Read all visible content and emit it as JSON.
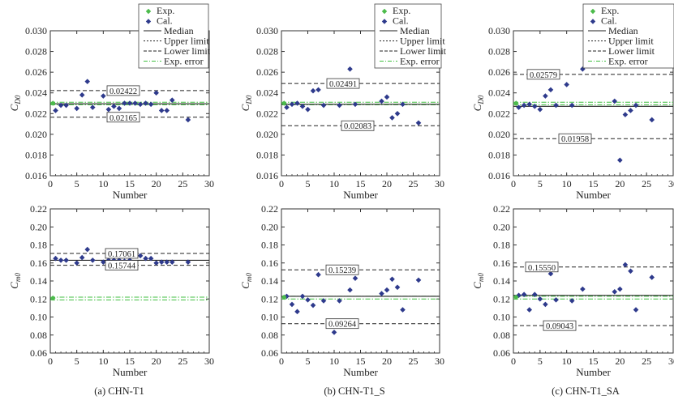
{
  "legend": {
    "exp": "Exp.",
    "cal": "Cal.",
    "median": "Median",
    "upper": "Upper limit",
    "lower": "Lower limit",
    "experr": "Exp. error"
  },
  "colors": {
    "exp": "#4cbb4c",
    "cal": "#2e3a8c",
    "median": "#222222",
    "limit": "#222222",
    "experr": "#3fbf3f"
  },
  "chart_data": [
    {
      "type": "scatter",
      "panel": "(a) CHN-T1",
      "metric": "CD0",
      "xlabel": "Number",
      "ylabel": "CD0",
      "xlim": [
        0,
        30
      ],
      "ylim": [
        0.016,
        0.03
      ],
      "xticks": [
        "0",
        "5",
        "10",
        "15",
        "20",
        "25",
        "30"
      ],
      "yticks": [
        "0.016",
        "0.018",
        "0.020",
        "0.022",
        "0.024",
        "0.026",
        "0.028",
        "0.030"
      ],
      "exp": 0.023,
      "median": 0.02295,
      "upper": 0.02422,
      "lower": 0.02165,
      "experr": [
        0.02285,
        0.0231
      ],
      "upper_label": "0.02422",
      "lower_label": "0.02165",
      "cal": [
        [
          1,
          0.0223
        ],
        [
          2,
          0.0228
        ],
        [
          3,
          0.0228
        ],
        [
          5,
          0.0225
        ],
        [
          6,
          0.0238
        ],
        [
          7,
          0.0251
        ],
        [
          8,
          0.0226
        ],
        [
          10,
          0.0237
        ],
        [
          11,
          0.0224
        ],
        [
          12,
          0.0227
        ],
        [
          13,
          0.0225
        ],
        [
          14,
          0.023
        ],
        [
          15,
          0.023
        ],
        [
          16,
          0.023
        ],
        [
          17,
          0.0229
        ],
        [
          18,
          0.023
        ],
        [
          19,
          0.0229
        ],
        [
          20,
          0.024
        ],
        [
          21,
          0.0223
        ],
        [
          22,
          0.0223
        ],
        [
          23,
          0.0233
        ],
        [
          26,
          0.0214
        ]
      ]
    },
    {
      "type": "scatter",
      "panel": "(b) CHN-T1_S",
      "metric": "CD0",
      "xlabel": "Number",
      "ylabel": "CD0",
      "xlim": [
        0,
        30
      ],
      "ylim": [
        0.016,
        0.03
      ],
      "xticks": [
        "0",
        "5",
        "10",
        "15",
        "20",
        "25",
        "30"
      ],
      "yticks": [
        "0.016",
        "0.018",
        "0.020",
        "0.022",
        "0.024",
        "0.026",
        "0.028",
        "0.030"
      ],
      "exp": 0.023,
      "median": 0.0229,
      "upper": 0.02491,
      "lower": 0.02083,
      "experr": [
        0.02285,
        0.0231
      ],
      "upper_label": "0.02491",
      "lower_label": "0.02083",
      "cal": [
        [
          1,
          0.0226
        ],
        [
          2,
          0.0229
        ],
        [
          3,
          0.023
        ],
        [
          4,
          0.0227
        ],
        [
          5,
          0.0224
        ],
        [
          6,
          0.0242
        ],
        [
          7,
          0.0243
        ],
        [
          8,
          0.0228
        ],
        [
          10,
          0.0248
        ],
        [
          11,
          0.0228
        ],
        [
          13,
          0.0263
        ],
        [
          14,
          0.0229
        ],
        [
          19,
          0.0232
        ],
        [
          20,
          0.0236
        ],
        [
          21,
          0.0216
        ],
        [
          22,
          0.022
        ],
        [
          23,
          0.0229
        ],
        [
          26,
          0.0211
        ]
      ]
    },
    {
      "type": "scatter",
      "panel": "(c) CHN-T1_SA",
      "metric": "CD0",
      "xlabel": "Number",
      "ylabel": "CD0",
      "xlim": [
        0,
        30
      ],
      "ylim": [
        0.016,
        0.03
      ],
      "xticks": [
        "0",
        "5",
        "10",
        "15",
        "20",
        "25",
        "30"
      ],
      "yticks": [
        "0.016",
        "0.018",
        "0.020",
        "0.022",
        "0.024",
        "0.026",
        "0.028",
        "0.030"
      ],
      "exp": 0.023,
      "median": 0.0227,
      "upper": 0.02579,
      "lower": 0.01958,
      "experr": [
        0.02285,
        0.0231
      ],
      "upper_label": "0.02579",
      "lower_label": "0.01958",
      "cal": [
        [
          1,
          0.0226
        ],
        [
          2,
          0.0228
        ],
        [
          3,
          0.0229
        ],
        [
          4,
          0.0227
        ],
        [
          5,
          0.0224
        ],
        [
          6,
          0.0237
        ],
        [
          7,
          0.0243
        ],
        [
          8,
          0.0228
        ],
        [
          10,
          0.0248
        ],
        [
          11,
          0.0228
        ],
        [
          13,
          0.0263
        ],
        [
          19,
          0.0232
        ],
        [
          20,
          0.0175
        ],
        [
          21,
          0.0219
        ],
        [
          22,
          0.0223
        ],
        [
          23,
          0.0228
        ],
        [
          26,
          0.0214
        ]
      ]
    },
    {
      "type": "scatter",
      "panel": "(a) CHN-T1",
      "metric": "Cm0",
      "xlabel": "Number",
      "ylabel": "Cm0",
      "xlim": [
        0,
        30
      ],
      "ylim": [
        0.06,
        0.22
      ],
      "xticks": [
        "0",
        "5",
        "10",
        "15",
        "20",
        "25",
        "30"
      ],
      "yticks": [
        "0.06",
        "0.08",
        "0.10",
        "0.12",
        "0.14",
        "0.16",
        "0.18",
        "0.20",
        "0.22"
      ],
      "exp": 0.121,
      "median": 0.163,
      "upper": 0.17061,
      "lower": 0.15744,
      "experr": [
        0.119,
        0.122
      ],
      "upper_label": "0.17061",
      "lower_label": "0.15744",
      "cal": [
        [
          1,
          0.165
        ],
        [
          2,
          0.163
        ],
        [
          3,
          0.163
        ],
        [
          5,
          0.16
        ],
        [
          6,
          0.166
        ],
        [
          7,
          0.175
        ],
        [
          8,
          0.163
        ],
        [
          10,
          0.161
        ],
        [
          11,
          0.163
        ],
        [
          12,
          0.163
        ],
        [
          13,
          0.163
        ],
        [
          14,
          0.162
        ],
        [
          15,
          0.163
        ],
        [
          16,
          0.16
        ],
        [
          17,
          0.168
        ],
        [
          18,
          0.165
        ],
        [
          19,
          0.165
        ],
        [
          20,
          0.16
        ],
        [
          21,
          0.161
        ],
        [
          22,
          0.161
        ],
        [
          23,
          0.161
        ],
        [
          26,
          0.161
        ]
      ]
    },
    {
      "type": "scatter",
      "panel": "(b) CHN-T1_S",
      "metric": "Cm0",
      "xlabel": "Number",
      "ylabel": "Cm0",
      "xlim": [
        0,
        30
      ],
      "ylim": [
        0.06,
        0.22
      ],
      "xticks": [
        "0",
        "5",
        "10",
        "15",
        "20",
        "25",
        "30"
      ],
      "yticks": [
        "0.06",
        "0.08",
        "0.10",
        "0.12",
        "0.14",
        "0.16",
        "0.18",
        "0.20",
        "0.22"
      ],
      "exp": 0.122,
      "median": 0.123,
      "upper": 0.15239,
      "lower": 0.09264,
      "experr": [
        0.12,
        0.123
      ],
      "upper_label": "0.15239",
      "lower_label": "0.09264",
      "cal": [
        [
          1,
          0.123
        ],
        [
          2,
          0.114
        ],
        [
          3,
          0.106
        ],
        [
          4,
          0.123
        ],
        [
          5,
          0.119
        ],
        [
          6,
          0.113
        ],
        [
          7,
          0.147
        ],
        [
          8,
          0.118
        ],
        [
          10,
          0.083
        ],
        [
          11,
          0.118
        ],
        [
          13,
          0.13
        ],
        [
          14,
          0.143
        ],
        [
          19,
          0.126
        ],
        [
          20,
          0.13
        ],
        [
          21,
          0.142
        ],
        [
          22,
          0.133
        ],
        [
          23,
          0.108
        ],
        [
          26,
          0.141
        ]
      ]
    },
    {
      "type": "scatter",
      "panel": "(c) CHN-T1_SA",
      "metric": "Cm0",
      "xlabel": "Number",
      "ylabel": "Cm0",
      "xlim": [
        0,
        30
      ],
      "ylim": [
        0.06,
        0.22
      ],
      "xticks": [
        "0",
        "5",
        "10",
        "15",
        "20",
        "25",
        "30"
      ],
      "yticks": [
        "0.06",
        "0.08",
        "0.10",
        "0.12",
        "0.14",
        "0.16",
        "0.18",
        "0.20",
        "0.22"
      ],
      "exp": 0.122,
      "median": 0.124,
      "upper": 0.1555,
      "lower": 0.09043,
      "experr": [
        0.12,
        0.123
      ],
      "upper_label": "0.15550",
      "lower_label": "0.09043",
      "cal": [
        [
          1,
          0.124
        ],
        [
          2,
          0.125
        ],
        [
          3,
          0.108
        ],
        [
          4,
          0.125
        ],
        [
          5,
          0.12
        ],
        [
          6,
          0.114
        ],
        [
          7,
          0.148
        ],
        [
          8,
          0.119
        ],
        [
          10,
          0.089
        ],
        [
          11,
          0.118
        ],
        [
          13,
          0.131
        ],
        [
          19,
          0.128
        ],
        [
          20,
          0.131
        ],
        [
          21,
          0.158
        ],
        [
          22,
          0.151
        ],
        [
          23,
          0.108
        ],
        [
          26,
          0.144
        ]
      ]
    }
  ]
}
